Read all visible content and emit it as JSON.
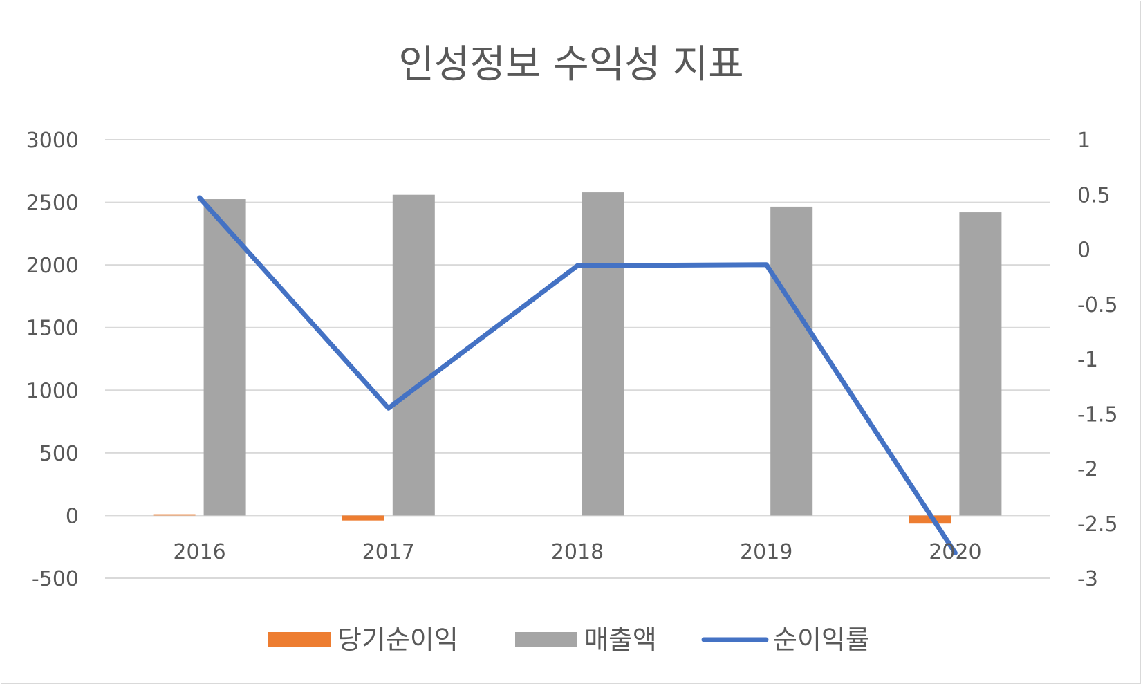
{
  "chart_data": {
    "type": "bar",
    "title": "인성정보 수익성 지표",
    "categories": [
      "2016",
      "2017",
      "2018",
      "2019",
      "2020"
    ],
    "series": [
      {
        "name": "당기순이익",
        "type": "bar",
        "axis": "left",
        "color": "#ed7d31",
        "values": [
          10,
          -40,
          0,
          0,
          -65
        ]
      },
      {
        "name": "매출액",
        "type": "bar",
        "axis": "left",
        "color": "#a5a5a5",
        "values": [
          2525,
          2560,
          2580,
          2465,
          2420
        ]
      },
      {
        "name": "순이익률",
        "type": "line",
        "axis": "right",
        "color": "#4472c4",
        "values": [
          0.47,
          -1.45,
          -0.15,
          -0.14,
          -2.77
        ]
      }
    ],
    "y_left": {
      "min": -500,
      "max": 3000,
      "ticks": [
        "3000",
        "2500",
        "2000",
        "1500",
        "1000",
        "500",
        "0",
        "-500"
      ]
    },
    "y_right": {
      "min": -3,
      "max": 1,
      "ticks": [
        "1",
        "0.5",
        "0",
        "-0.5",
        "-1",
        "-1.5",
        "-2",
        "-2.5",
        "-3"
      ]
    },
    "grid": true,
    "legend_position": "bottom"
  }
}
